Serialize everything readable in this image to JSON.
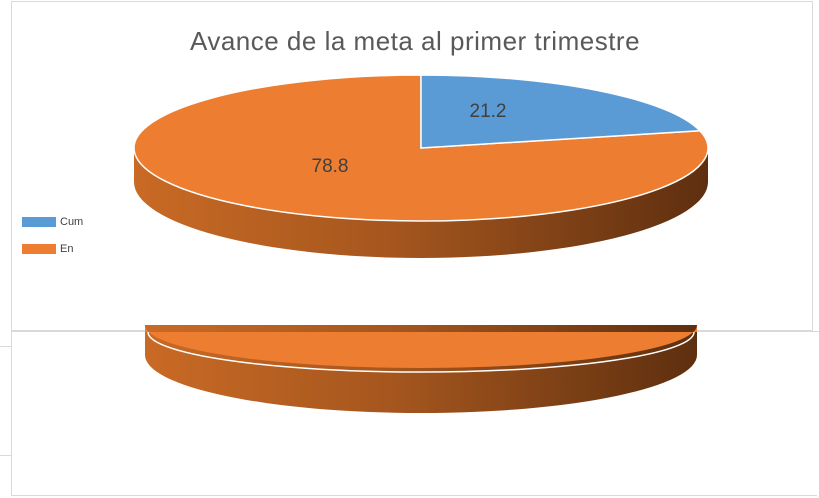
{
  "chart_data": {
    "type": "pie",
    "title": "Avance de la meta al primer trimestre",
    "slices": [
      {
        "label": "Cum",
        "value": 21.2,
        "color": "#5B9BD5"
      },
      {
        "label": "En",
        "value": 78.8,
        "color": "#ED7D31"
      }
    ],
    "legend_position": "left"
  }
}
